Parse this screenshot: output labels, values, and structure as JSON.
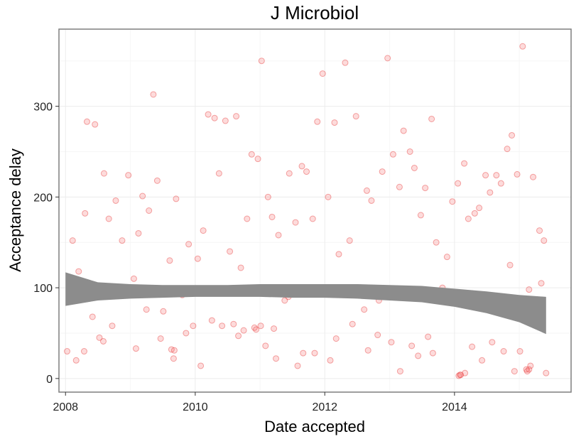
{
  "chart_data": {
    "type": "scatter",
    "title": "J Microbiol",
    "xlabel": "Date accepted",
    "ylabel": "Acceptance delay",
    "xlim": [
      "2007-11-25",
      "2015-10-20"
    ],
    "ylim": [
      -15,
      385
    ],
    "x_ticks": [
      "2008",
      "2010",
      "2012",
      "2014"
    ],
    "y_ticks": [
      0,
      100,
      200,
      300
    ],
    "grid": true,
    "legend": "none",
    "point_color": "#F8766D",
    "smooth": {
      "color": "#8c8c8c",
      "x": [
        "2008-01-01",
        "2008-07-01",
        "2009-01-01",
        "2009-07-01",
        "2010-01-01",
        "2010-07-01",
        "2011-01-01",
        "2011-07-01",
        "2012-01-01",
        "2012-07-01",
        "2013-01-01",
        "2013-07-01",
        "2014-01-01",
        "2014-07-01",
        "2015-01-01",
        "2015-06-01"
      ],
      "upper": [
        117,
        106,
        104,
        103,
        103,
        103,
        104,
        104,
        104,
        104,
        103,
        102,
        99,
        96,
        92,
        90
      ],
      "lower": [
        80,
        86,
        88,
        89,
        90,
        90,
        90,
        89,
        89,
        88,
        86,
        84,
        79,
        72,
        62,
        49
      ]
    },
    "series": [
      {
        "x": [
          "2008-02-10",
          "2008-03-15",
          "2008-04-20",
          "2008-05-01",
          "2008-05-20",
          "2008-06-15",
          "2008-07-10",
          "2008-08-05",
          "2008-09-01",
          "2008-10-10",
          "2008-11-15",
          "2008-12-20",
          "2009-01-20",
          "2009-02-15",
          "2009-03-10",
          "2009-04-15",
          "2009-05-10",
          "2009-06-01",
          "2009-07-05",
          "2009-08-10",
          "2009-09-15",
          "2009-10-20",
          "2009-11-25",
          "2009-12-20",
          "2010-01-15",
          "2010-02-15",
          "2010-03-15",
          "2010-04-20",
          "2010-05-15",
          "2010-06-20",
          "2010-07-15",
          "2010-08-20",
          "2010-09-15",
          "2010-10-20",
          "2010-11-15",
          "2010-12-20",
          "2011-01-10",
          "2011-02-15",
          "2011-03-10",
          "2011-04-15",
          "2011-05-20",
          "2011-06-15",
          "2011-07-20",
          "2011-08-25",
          "2011-09-20",
          "2011-10-25",
          "2011-11-20",
          "2011-12-20",
          "2012-01-20",
          "2012-02-25",
          "2012-03-20",
          "2012-04-25",
          "2012-05-20",
          "2012-06-25",
          "2012-07-20",
          "2012-08-25",
          "2012-09-20",
          "2012-10-25",
          "2012-11-20",
          "2012-12-20",
          "2013-01-20",
          "2013-02-25",
          "2013-03-20",
          "2013-04-25",
          "2013-05-20",
          "2013-06-25",
          "2013-07-20",
          "2013-08-25",
          "2013-09-20",
          "2013-10-25",
          "2013-11-20",
          "2013-12-20",
          "2014-01-20",
          "2014-02-25",
          "2014-03-20",
          "2014-04-25",
          "2014-05-20",
          "2014-06-25",
          "2014-07-20",
          "2014-08-25",
          "2014-09-20",
          "2014-10-25",
          "2014-11-20",
          "2014-12-20",
          "2015-01-20",
          "2015-02-25",
          "2015-03-20",
          "2015-04-25",
          "2015-05-20",
          "2008-04-15",
          "2008-09-20",
          "2009-06-20",
          "2010-04-05",
          "2010-09-01",
          "2011-02-01",
          "2011-06-10",
          "2011-11-05",
          "2012-03-05",
          "2012-08-10",
          "2013-01-10",
          "2013-06-10",
          "2013-11-05",
          "2014-04-10",
          "2014-10-05",
          "2015-03-05",
          "2008-03-01",
          "2008-08-01",
          "2009-02-01",
          "2009-09-01",
          "2010-02-01",
          "2010-10-01",
          "2011-04-01",
          "2011-09-01",
          "2012-02-01",
          "2012-09-01",
          "2013-03-01",
          "2013-09-01",
          "2014-02-01",
          "2014-08-01",
          "2015-01-05",
          "2015-04-10",
          "2008-01-10",
          "2009-11-10",
          "2010-06-01",
          "2011-08-01",
          "2012-06-05",
          "2013-05-05",
          "2014-06-05",
          "2014-12-05",
          "2015-05-05",
          "2008-06-01",
          "2009-04-01",
          "2010-08-05",
          "2011-03-20",
          "2012-11-01",
          "2013-08-05",
          "2014-03-01",
          "2014-11-10",
          "2015-02-10",
          "2015-06-01",
          "2014-01-25",
          "2014-02-05",
          "2015-02-15",
          "2015-02-25",
          "2009-08-20",
          "2009-09-05",
          "2010-12-01",
          "2010-12-10",
          "2011-01-05"
        ],
        "y": [
          152,
          118,
          182,
          283,
          96,
          280,
          45,
          226,
          176,
          196,
          152,
          224,
          110,
          160,
          201,
          185,
          313,
          218,
          74,
          130,
          198,
          92,
          148,
          58,
          132,
          163,
          291,
          287,
          226,
          284,
          140,
          289,
          122,
          176,
          247,
          242,
          350,
          200,
          178,
          158,
          86,
          226,
          172,
          234,
          228,
          176,
          283,
          336,
          200,
          282,
          137,
          348,
          152,
          289,
          96,
          207,
          196,
          48,
          228,
          353,
          247,
          211,
          273,
          250,
          232,
          180,
          210,
          286,
          150,
          100,
          134,
          195,
          215,
          237,
          176,
          182,
          188,
          224,
          205,
          224,
          215,
          253,
          268,
          225,
          366,
          98,
          222,
          163,
          152,
          30,
          58,
          44,
          64,
          47,
          36,
          90,
          28,
          44,
          76,
          40,
          25,
          88,
          35,
          30,
          14,
          20,
          41,
          33,
          22,
          14,
          53,
          22,
          28,
          20,
          31,
          8,
          28,
          4,
          40,
          30,
          80,
          30,
          50,
          58,
          14,
          60,
          36,
          20,
          8,
          105,
          68,
          76,
          60,
          55,
          86,
          46,
          6,
          125,
          10,
          6,
          3,
          4,
          8,
          10,
          32,
          31,
          56,
          54,
          58
        ]
      }
    ]
  }
}
